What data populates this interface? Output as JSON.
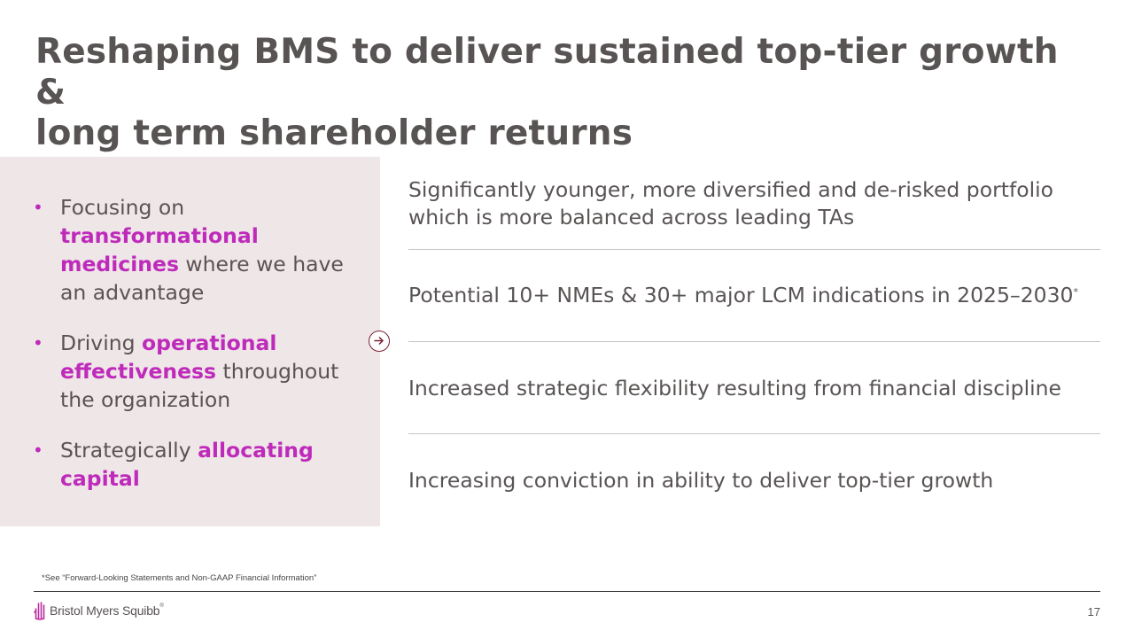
{
  "slide": {
    "title_line1": "Reshaping BMS to deliver sustained top-tier growth &",
    "title_line2": "long term shareholder returns"
  },
  "left_bullets": [
    {
      "before": "Focusing on ",
      "highlight": "transformational medicines",
      "after": " where we have an advantage"
    },
    {
      "before": "Driving ",
      "highlight": "operational effectiveness",
      "after": " throughout the organization"
    },
    {
      "before": "Strategically ",
      "highlight": "allocating capital",
      "after": ""
    }
  ],
  "bullet_symbol": "•",
  "right_items": [
    {
      "text": "Significantly younger, more diversified and de-risked portfolio which is more balanced across leading TAs"
    },
    {
      "text": "Potential 10+ NMEs & 30+ major LCM indications in 2025–2030",
      "sup": "*"
    },
    {
      "text": "Increased strategic flexibility resulting from financial discipline"
    },
    {
      "text": "Increasing conviction in ability to deliver top-tier growth"
    }
  ],
  "footnote": "*See “Forward-Looking Statements and Non-GAAP Financial Information”",
  "footer": {
    "logo_text": "Bristol Myers Squibb",
    "logo_mark": "®",
    "page_number": "17"
  },
  "icons": {
    "arrow": "arrow-right-circle-icon",
    "logo": "bms-hand-logo-icon"
  },
  "colors": {
    "text": "#595454",
    "accent": "#be2bbb",
    "panel_bg": "#efe6e7",
    "arrow": "#7a2433"
  }
}
